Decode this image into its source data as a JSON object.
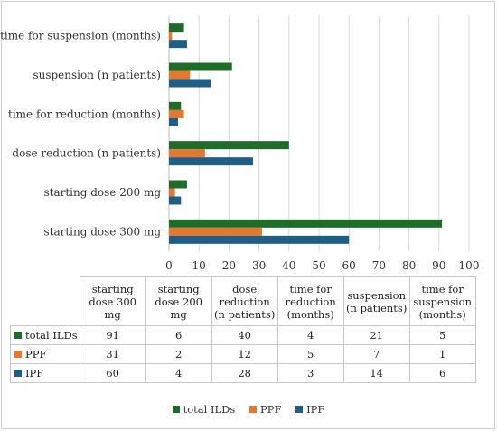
{
  "chart_data": {
    "type": "bar",
    "orientation": "horizontal",
    "categories": [
      "starting dose 300 mg",
      "starting dose 200 mg",
      "dose reduction (n patients)",
      "time for reduction (months)",
      "suspension (n patients)",
      "time for suspension (months)"
    ],
    "table_headers": [
      "starting dose 300 mg",
      "starting dose 200 mg",
      "dose reduction (n patients)",
      "time for reduction (months)",
      "suspension (n patients)",
      "time for suspension (months)"
    ],
    "series": [
      {
        "name": "total ILDs",
        "color": "#1e6b2a",
        "values": [
          91,
          6,
          40,
          4,
          21,
          5
        ]
      },
      {
        "name": "PPF",
        "color": "#e4782e",
        "values": [
          31,
          2,
          12,
          5,
          7,
          1
        ]
      },
      {
        "name": "IPF",
        "color": "#1f5f86",
        "values": [
          60,
          4,
          28,
          3,
          14,
          6
        ]
      }
    ],
    "xlim": [
      0,
      100
    ],
    "xticks": [
      0,
      10,
      20,
      30,
      40,
      50,
      60,
      70,
      80,
      90,
      100
    ],
    "grid": true,
    "legend": "bottom",
    "title": "",
    "xlabel": "",
    "ylabel": ""
  }
}
